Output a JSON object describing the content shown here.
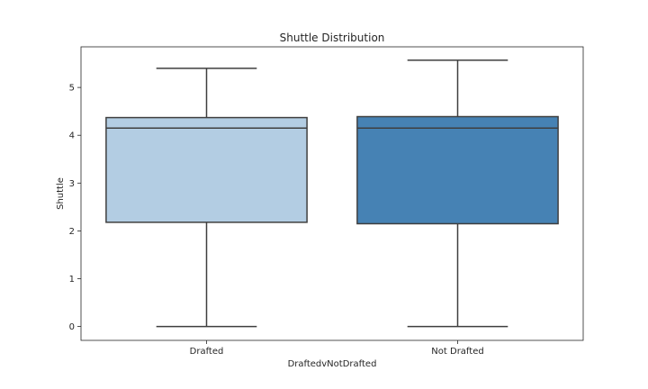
{
  "chart_data": {
    "type": "box",
    "title": "Shuttle Distribution",
    "xlabel": "DraftedvNotDrafted",
    "ylabel": "Shuttle",
    "categories": [
      "Drafted",
      "Not Drafted"
    ],
    "ylim": [
      -0.29,
      5.85
    ],
    "yticks": [
      "0",
      "1",
      "2",
      "3",
      "4",
      "5"
    ],
    "grid": false,
    "boxes": [
      {
        "category": "Drafted",
        "whisker_low": 0.0,
        "q1": 2.18,
        "median": 4.15,
        "q3": 4.37,
        "whisker_high": 5.4,
        "color": "#b3cde3"
      },
      {
        "category": "Not Drafted",
        "whisker_low": 0.0,
        "q1": 2.15,
        "median": 4.15,
        "q3": 4.39,
        "whisker_high": 5.57,
        "color": "#4682b4"
      }
    ]
  }
}
